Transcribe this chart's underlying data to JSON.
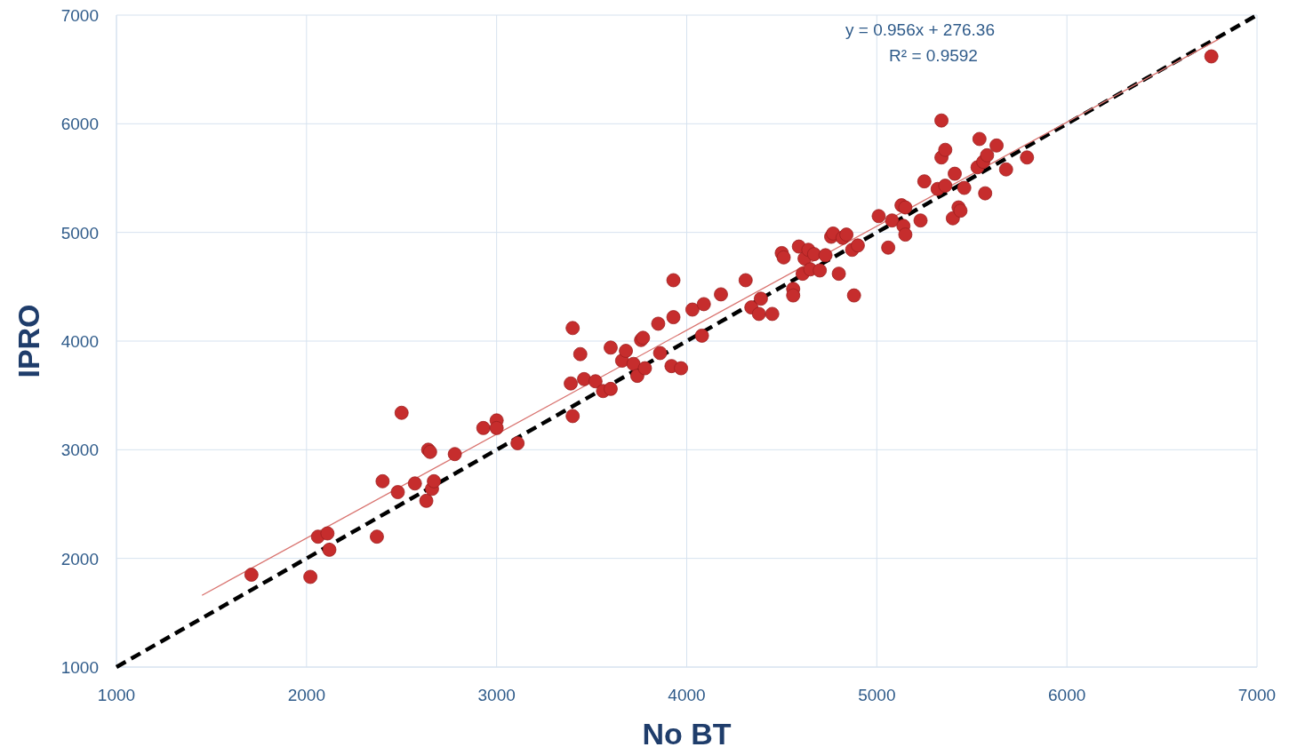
{
  "chart_data": {
    "type": "scatter",
    "xlabel": "No BT",
    "ylabel": "IPRO",
    "annotations": [
      "y = 0.956x + 276.36",
      "R² = 0.9592"
    ],
    "xlim": [
      1000,
      7000
    ],
    "xticks": [
      1000,
      2000,
      3000,
      4000,
      5000,
      6000,
      7000
    ],
    "ylim": [
      1000,
      7000
    ],
    "yticks": [
      1000,
      2000,
      3000,
      4000,
      5000,
      6000,
      7000
    ],
    "grid": true,
    "series": [
      {
        "type": "line",
        "color": "#000000",
        "line_style": "dashed",
        "x": [
          1000,
          7000
        ],
        "values": [
          1000,
          7000
        ]
      },
      {
        "type": "line",
        "color": "#d9736f",
        "line_style": "solid",
        "x": [
          1450,
          6800
        ],
        "values": [
          1660,
          6780
        ]
      },
      {
        "color": "#c62d2d",
        "marker": "circle",
        "x": [
          1710,
          2020,
          2060,
          2110,
          2120,
          2370,
          2400,
          2480,
          2500,
          2570,
          2630,
          2640,
          2650,
          2660,
          2670,
          2780,
          2930,
          3000,
          3000,
          3110,
          3390,
          3400,
          3400,
          3440,
          3460,
          3520,
          3560,
          3600,
          3600,
          3660,
          3680,
          3720,
          3740,
          3760,
          3770,
          3780,
          3850,
          3860,
          3920,
          3930,
          3930,
          3970,
          4030,
          4080,
          4090,
          4180,
          4310,
          4340,
          4380,
          4390,
          4450,
          4500,
          4510,
          4560,
          4560,
          4590,
          4610,
          4620,
          4640,
          4650,
          4670,
          4700,
          4730,
          4760,
          4770,
          4800,
          4820,
          4840,
          4870,
          4880,
          4900,
          5010,
          5060,
          5080,
          5130,
          5140,
          5150,
          5150,
          5230,
          5250,
          5320,
          5340,
          5340,
          5360,
          5360,
          5400,
          5410,
          5430,
          5440,
          5460,
          5530,
          5540,
          5560,
          5570,
          5580,
          5630,
          5680,
          5790,
          6760
        ],
        "values": [
          1850,
          1830,
          2200,
          2230,
          2080,
          2200,
          2710,
          2610,
          3340,
          2690,
          2530,
          3000,
          2980,
          2640,
          2710,
          2960,
          3200,
          3270,
          3200,
          3060,
          3610,
          4120,
          3310,
          3880,
          3650,
          3630,
          3540,
          3940,
          3560,
          3820,
          3910,
          3790,
          3680,
          4010,
          4030,
          3750,
          4160,
          3890,
          3770,
          4560,
          4220,
          3750,
          4290,
          4050,
          4340,
          4430,
          4560,
          4310,
          4250,
          4390,
          4250,
          4810,
          4770,
          4480,
          4420,
          4870,
          4620,
          4760,
          4840,
          4660,
          4800,
          4650,
          4790,
          4960,
          4990,
          4620,
          4950,
          4980,
          4840,
          4420,
          4880,
          5150,
          4860,
          5110,
          5250,
          5060,
          5230,
          4980,
          5110,
          5470,
          5400,
          6030,
          5690,
          5760,
          5430,
          5130,
          5540,
          5230,
          5200,
          5410,
          5600,
          5860,
          5650,
          5360,
          5710,
          5800,
          5580,
          5690,
          6620
        ]
      }
    ]
  }
}
